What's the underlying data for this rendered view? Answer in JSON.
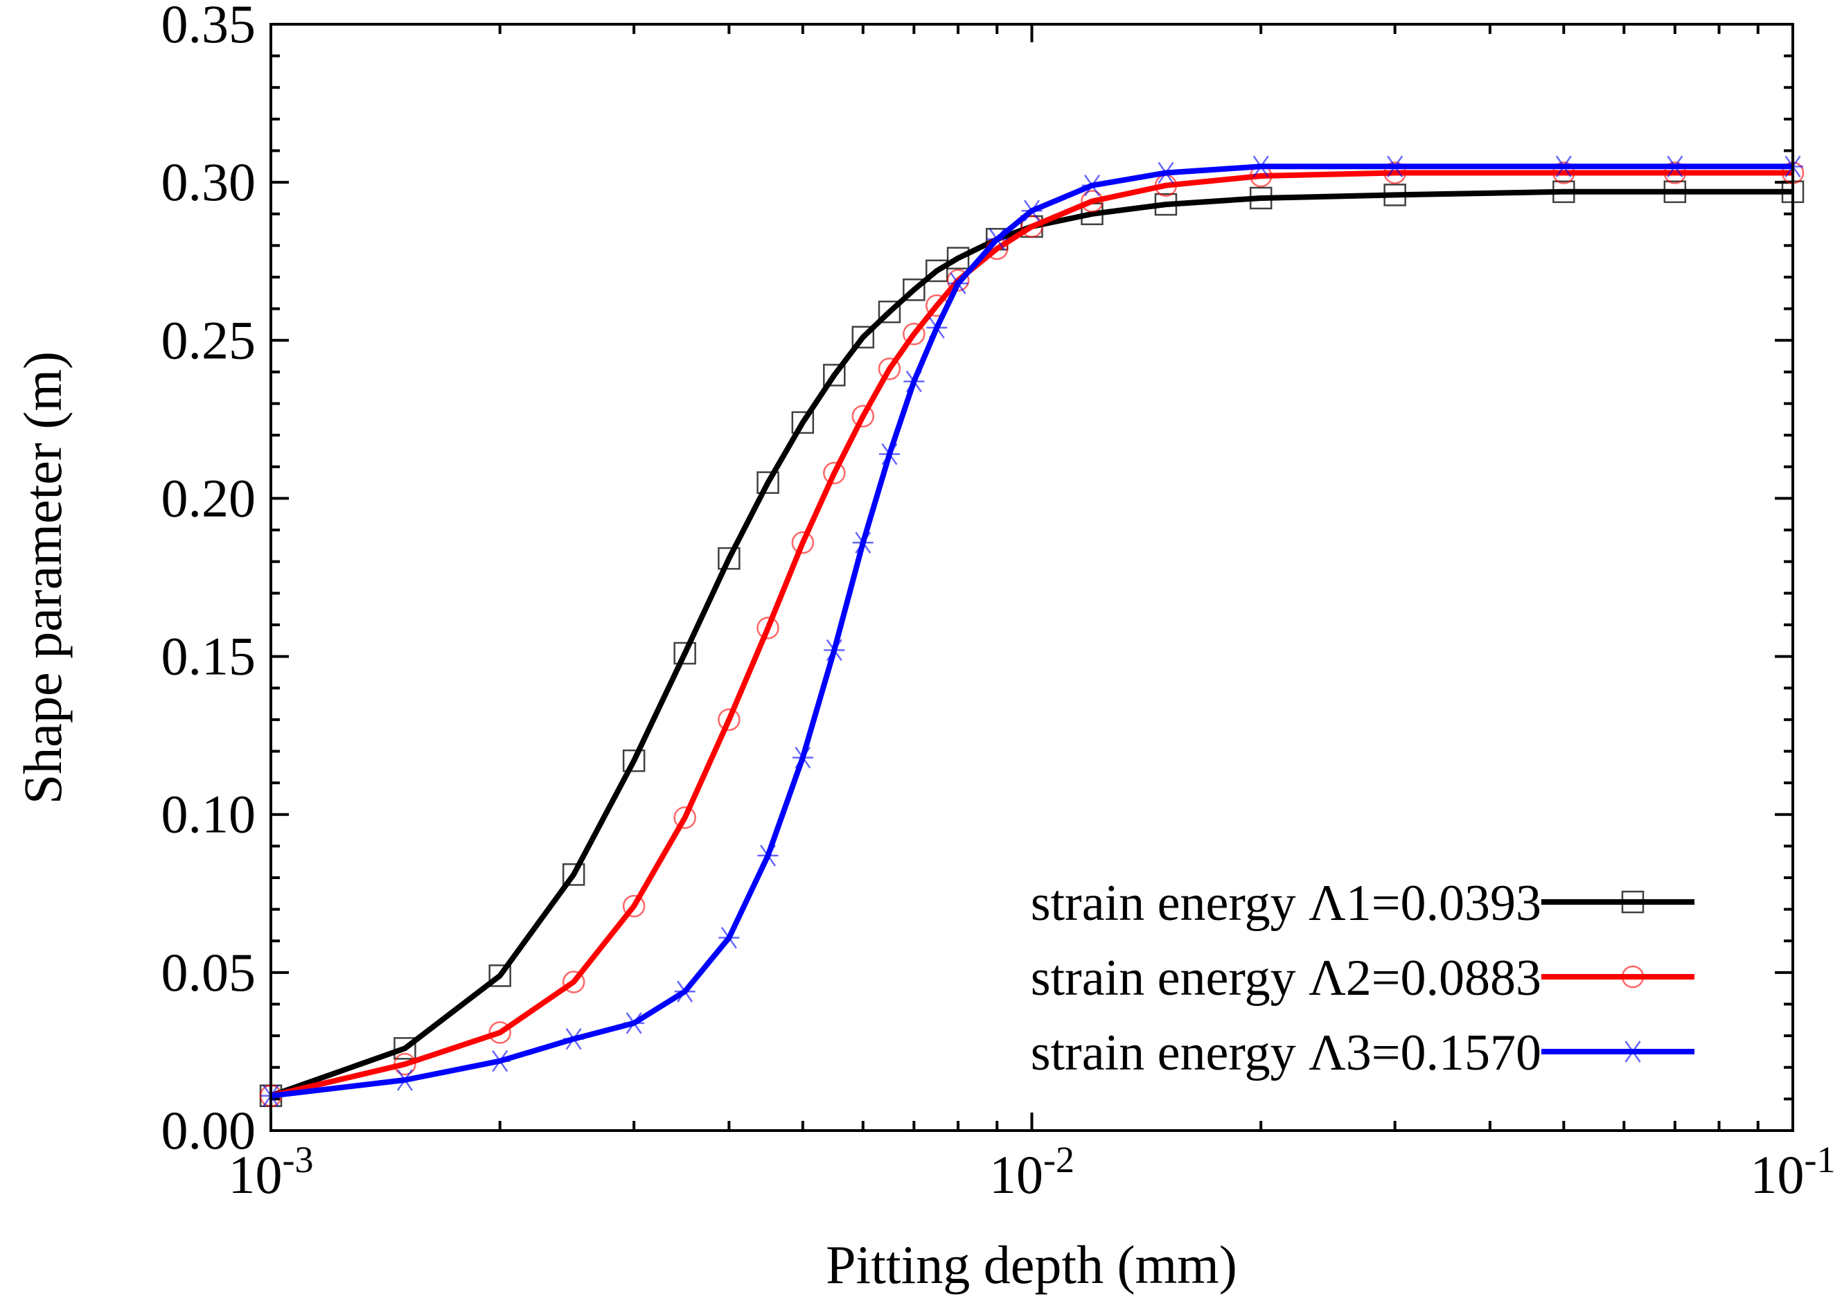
{
  "chart_data": {
    "type": "line",
    "xscale": "log",
    "xlim": [
      0.001,
      0.1
    ],
    "ylim": [
      0,
      0.35
    ],
    "xlabel": "Pitting depth (mm)",
    "ylabel": "Shape parameter (m)",
    "grid": false,
    "legend_position": "bottom-right",
    "x_ticks": [
      {
        "value": 0.001,
        "base": "10",
        "exp": "-3"
      },
      {
        "value": 0.01,
        "base": "10",
        "exp": "-2"
      },
      {
        "value": 0.1,
        "base": "10",
        "exp": "-1"
      }
    ],
    "y_ticks": [
      {
        "value": 0,
        "label": "0.00"
      },
      {
        "value": 0.05,
        "label": "0.05"
      },
      {
        "value": 0.1,
        "label": "0.10"
      },
      {
        "value": 0.15,
        "label": "0.15"
      },
      {
        "value": 0.2,
        "label": "0.20"
      },
      {
        "value": 0.25,
        "label": "0.25"
      },
      {
        "value": 0.3,
        "label": "0.30"
      },
      {
        "value": 0.35,
        "label": "0.35"
      }
    ],
    "x": [
      0.001,
      0.0015,
      0.002,
      0.0025,
      0.003,
      0.0035,
      0.004,
      0.0045,
      0.005,
      0.0055,
      0.006,
      0.0065,
      0.007,
      0.0075,
      0.008,
      0.009,
      0.01,
      0.012,
      0.015,
      0.02,
      0.03,
      0.05,
      0.07,
      0.1
    ],
    "series": [
      {
        "name": "strain energy Λ1=0.0393",
        "color": "#000000",
        "marker": "square",
        "values": [
          0.011,
          0.026,
          0.049,
          0.081,
          0.117,
          0.151,
          0.181,
          0.205,
          0.224,
          0.239,
          0.251,
          0.259,
          0.266,
          0.272,
          0.276,
          0.282,
          0.286,
          0.29,
          0.293,
          0.295,
          0.296,
          0.297,
          0.297,
          0.297
        ]
      },
      {
        "name": "strain energy Λ2=0.0883",
        "color": "#ff0000",
        "marker": "circle",
        "values": [
          0.011,
          0.021,
          0.031,
          0.047,
          0.071,
          0.099,
          0.13,
          0.159,
          0.186,
          0.208,
          0.226,
          0.241,
          0.252,
          0.261,
          0.269,
          0.279,
          0.286,
          0.294,
          0.299,
          0.302,
          0.303,
          0.303,
          0.303,
          0.303
        ]
      },
      {
        "name": "strain energy Λ3=0.1570",
        "color": "#0000ff",
        "marker": "star",
        "values": [
          0.011,
          0.016,
          0.022,
          0.029,
          0.034,
          0.044,
          0.061,
          0.087,
          0.118,
          0.152,
          0.186,
          0.214,
          0.237,
          0.254,
          0.268,
          0.282,
          0.291,
          0.299,
          0.303,
          0.305,
          0.305,
          0.305,
          0.305,
          0.305
        ]
      }
    ]
  }
}
